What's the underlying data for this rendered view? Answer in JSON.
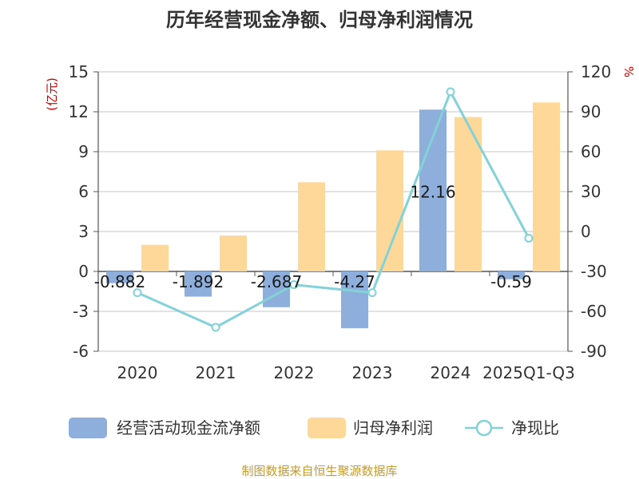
{
  "chart_data": {
    "type": "bar+line",
    "title": "历年经营现金净额、归母净利润情况",
    "categories": [
      "2020",
      "2021",
      "2022",
      "2023",
      "2024",
      "2025Q1-Q3"
    ],
    "left_axis": {
      "label": "(亿元)",
      "min": -6,
      "max": 15,
      "ticks": [
        "15",
        "12",
        "9",
        "6",
        "3",
        "0",
        "-3",
        "-6"
      ],
      "tick_values": [
        15,
        12,
        9,
        6,
        3,
        0,
        -3,
        -6
      ]
    },
    "right_axis": {
      "label": "%",
      "min": -90,
      "max": 120,
      "ticks": [
        "120",
        "90",
        "60",
        "30",
        "0",
        "-30",
        "-60",
        "-90"
      ],
      "tick_values": [
        120,
        90,
        60,
        30,
        0,
        -30,
        -60,
        -90
      ]
    },
    "series": [
      {
        "name": "经营活动现金流净额",
        "type": "bar",
        "axis": "left",
        "color": "#8eaedb",
        "values": [
          -0.882,
          -1.892,
          -2.687,
          -4.27,
          12.16,
          -0.59
        ],
        "labels": [
          "-0.882",
          "-1.892",
          "-2.687",
          "-4.27",
          "12.16",
          "-0.59"
        ]
      },
      {
        "name": "归母净利润",
        "type": "bar",
        "axis": "left",
        "color": "#fed898",
        "values": [
          2.0,
          2.7,
          6.7,
          9.1,
          11.6,
          12.7
        ]
      },
      {
        "name": "净现比",
        "type": "line",
        "axis": "right",
        "color": "#82d2d8",
        "values": [
          -46,
          -72,
          -40,
          -46,
          105,
          -5
        ]
      }
    ],
    "legend": [
      "经营活动现金流净额",
      "归母净利润",
      "净现比"
    ],
    "grid": true
  },
  "footer": {
    "source": "制图数据来自恒生聚源数据库",
    "source_color": "#c49a2c"
  },
  "colors": {
    "left_axis_label": "#cc0000",
    "right_axis_label": "#cc0000",
    "title": "#333333",
    "text": "#333333"
  }
}
